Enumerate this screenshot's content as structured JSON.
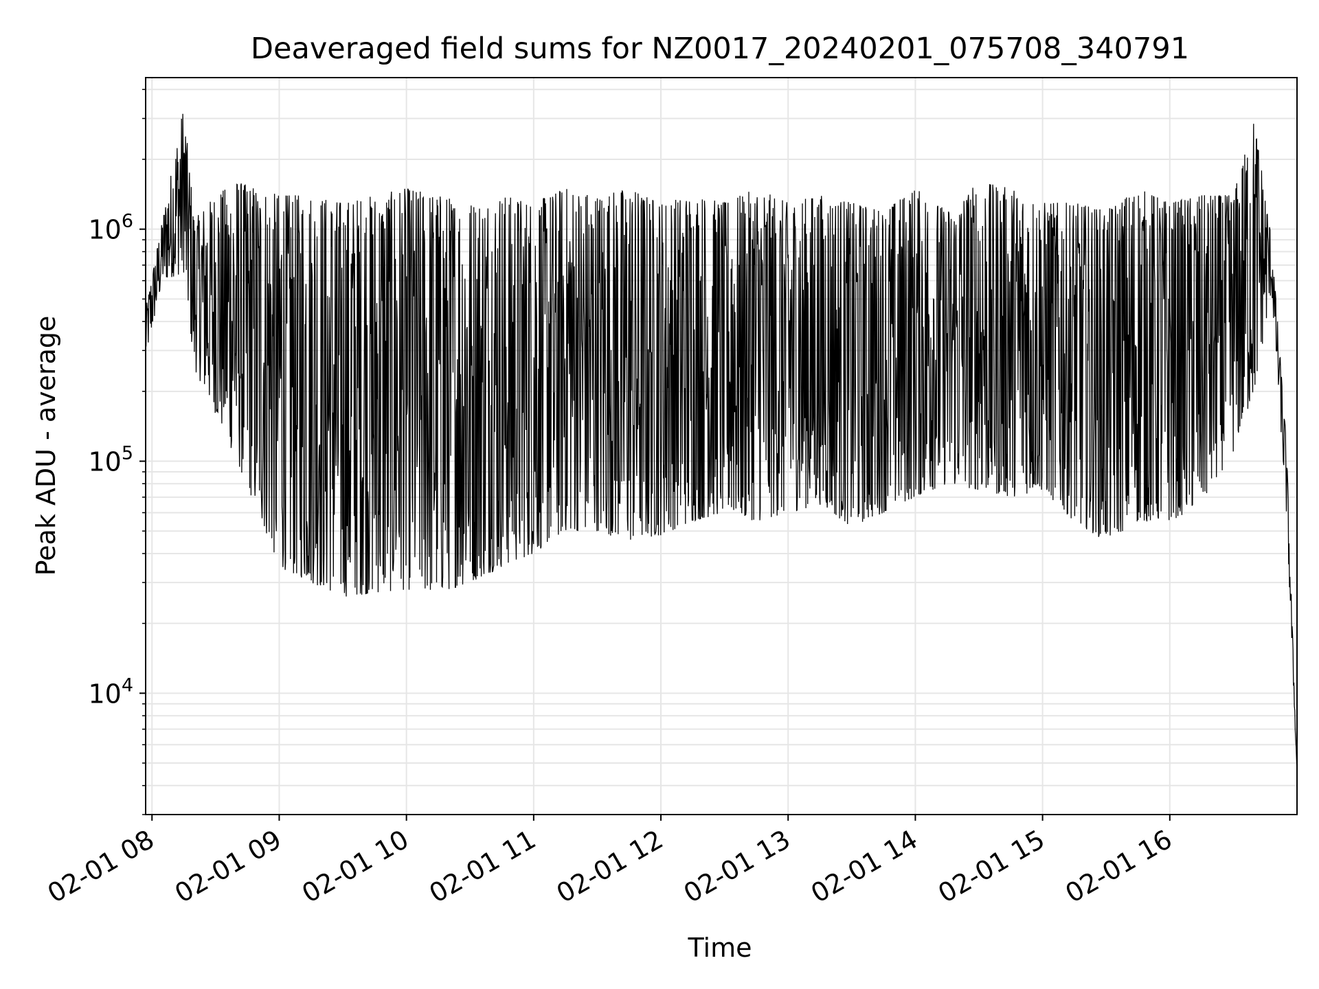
{
  "chart_data": {
    "type": "line",
    "title": "Deaveraged field sums for NZ0017_20240201_075708_340791",
    "xlabel": "Time",
    "ylabel": "Peak ADU - average",
    "yscale": "log",
    "grid": true,
    "xlim": [
      "2024-02-01 07:57",
      "2024-02-01 17:00"
    ],
    "ylim": [
      3000,
      4500000
    ],
    "x_ticks": [
      {
        "value": "2024-02-01 08:00",
        "label": "02-01 08"
      },
      {
        "value": "2024-02-01 09:00",
        "label": "02-01 09"
      },
      {
        "value": "2024-02-01 10:00",
        "label": "02-01 10"
      },
      {
        "value": "2024-02-01 11:00",
        "label": "02-01 11"
      },
      {
        "value": "2024-02-01 12:00",
        "label": "02-01 12"
      },
      {
        "value": "2024-02-01 13:00",
        "label": "02-01 13"
      },
      {
        "value": "2024-02-01 14:00",
        "label": "02-01 14"
      },
      {
        "value": "2024-02-01 15:00",
        "label": "02-01 15"
      },
      {
        "value": "2024-02-01 16:00",
        "label": "02-01 16"
      }
    ],
    "y_ticks": [
      {
        "value": 10000,
        "base": "10",
        "exp": "4"
      },
      {
        "value": 100000,
        "base": "10",
        "exp": "5"
      },
      {
        "value": 1000000,
        "base": "10",
        "exp": "6"
      }
    ],
    "series": [
      {
        "color": "#000000",
        "note": "dense noisy series; envelope of sampled points (upper peak, lower trough)",
        "x": [
          "2024-02-01 07:57",
          "2024-02-01 08:05",
          "2024-02-01 08:15",
          "2024-02-01 08:20",
          "2024-02-01 08:30",
          "2024-02-01 08:40",
          "2024-02-01 08:50",
          "2024-02-01 09:00",
          "2024-02-01 09:15",
          "2024-02-01 09:30",
          "2024-02-01 09:45",
          "2024-02-01 10:00",
          "2024-02-01 10:15",
          "2024-02-01 10:30",
          "2024-02-01 10:45",
          "2024-02-01 11:00",
          "2024-02-01 11:15",
          "2024-02-01 11:30",
          "2024-02-01 11:45",
          "2024-02-01 12:00",
          "2024-02-01 12:15",
          "2024-02-01 12:30",
          "2024-02-01 12:45",
          "2024-02-01 13:00",
          "2024-02-01 13:15",
          "2024-02-01 13:30",
          "2024-02-01 13:45",
          "2024-02-01 14:00",
          "2024-02-01 14:15",
          "2024-02-01 14:30",
          "2024-02-01 14:45",
          "2024-02-01 15:00",
          "2024-02-01 15:15",
          "2024-02-01 15:30",
          "2024-02-01 15:45",
          "2024-02-01 16:00",
          "2024-02-01 16:15",
          "2024-02-01 16:30",
          "2024-02-01 16:40",
          "2024-02-01 16:48",
          "2024-02-01 16:55",
          "2024-02-01 17:00"
        ],
        "upper": [
          450000,
          1100000,
          3400000,
          1100000,
          1400000,
          1600000,
          1500000,
          1400000,
          1400000,
          1300000,
          1400000,
          1500000,
          1400000,
          1300000,
          1400000,
          1300000,
          1500000,
          1400000,
          1500000,
          1300000,
          1400000,
          1300000,
          1500000,
          1300000,
          1400000,
          1300000,
          1200000,
          1500000,
          1200000,
          1600000,
          1500000,
          1300000,
          1300000,
          1200000,
          1500000,
          1300000,
          1400000,
          1400000,
          3000000,
          900000,
          120000,
          4500
        ],
        "lower": [
          280000,
          600000,
          650000,
          250000,
          160000,
          100000,
          60000,
          35000,
          30000,
          26000,
          27000,
          28000,
          27000,
          30000,
          35000,
          40000,
          50000,
          50000,
          45000,
          48000,
          55000,
          60000,
          55000,
          60000,
          65000,
          52000,
          60000,
          70000,
          80000,
          75000,
          70000,
          75000,
          55000,
          45000,
          55000,
          55000,
          65000,
          110000,
          200000,
          550000,
          60000,
          4500
        ]
      }
    ]
  }
}
